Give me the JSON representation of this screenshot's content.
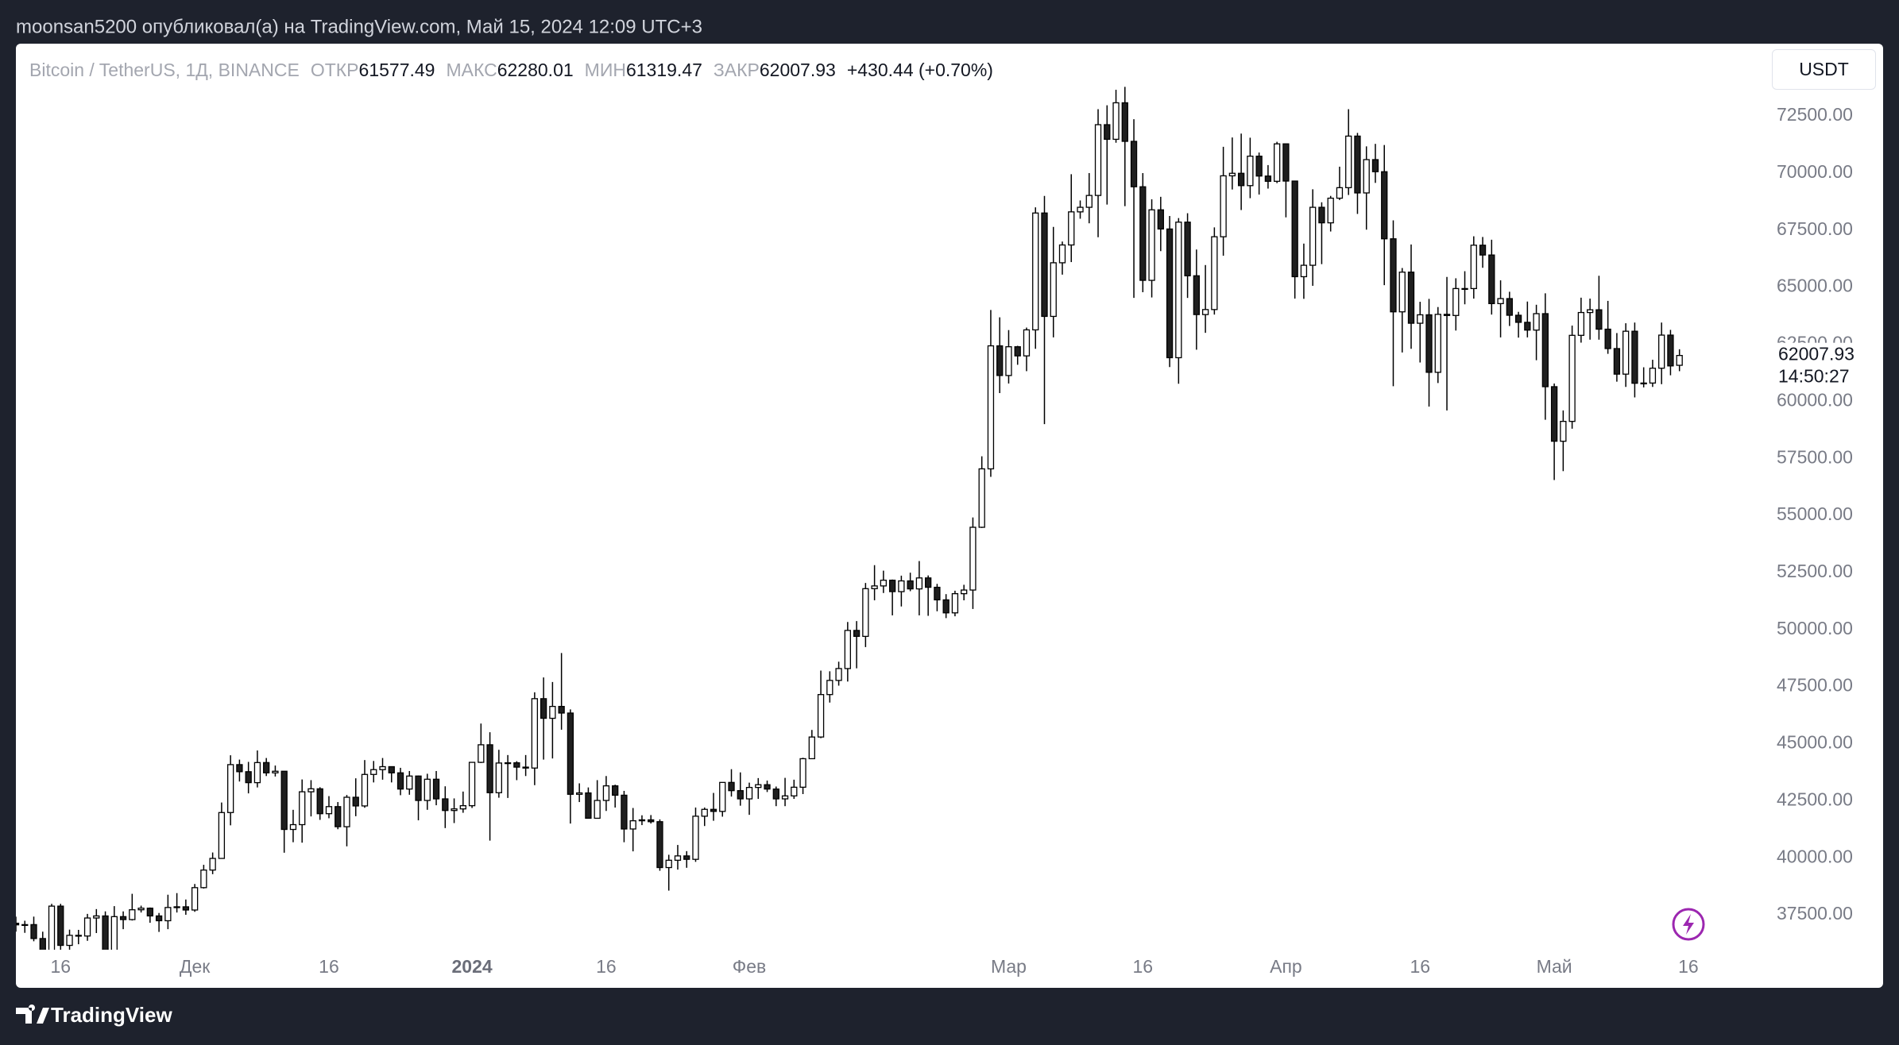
{
  "header": "moonsan5200 опубликовал(а) на TradingView.com, Май 15, 2024 12:09 UTC+3",
  "footer": {
    "brand": "TradingView"
  },
  "currency_button": "USDT",
  "chart_data": {
    "type": "candlestick",
    "symbol": "Bitcoin / TetherUS, 1Д, BINANCE",
    "legend_labels": {
      "open": "ОТКР",
      "high": "МАКС",
      "low": "МИН",
      "close": "ЗАКР"
    },
    "change": "+430.44 (+0.70%)",
    "countdown": "14:50:27",
    "up_color": "#ffffff",
    "down_color": "#1f1f1f",
    "wick_color": "#000000",
    "grid": false,
    "xlim": [
      "2023-11-11",
      "2024-05-24"
    ],
    "ylim": [
      35970,
      75670
    ],
    "yticks": [
      {
        "value": 37500,
        "label": "37500.00"
      },
      {
        "value": 40000,
        "label": "40000.00"
      },
      {
        "value": 42500,
        "label": "42500.00"
      },
      {
        "value": 45000,
        "label": "45000.00"
      },
      {
        "value": 47500,
        "label": "47500.00"
      },
      {
        "value": 50000,
        "label": "50000.00"
      },
      {
        "value": 52500,
        "label": "52500.00"
      },
      {
        "value": 55000,
        "label": "55000.00"
      },
      {
        "value": 57500,
        "label": "57500.00"
      },
      {
        "value": 60000,
        "label": "60000.00"
      },
      {
        "value": 62500,
        "label": "62500.00"
      },
      {
        "value": 65000,
        "label": "65000.00"
      },
      {
        "value": 67500,
        "label": "67500.00"
      },
      {
        "value": 70000,
        "label": "70000.00"
      },
      {
        "value": 72500,
        "label": "72500.00"
      }
    ],
    "xticks": [
      {
        "value": "2023-11-16",
        "label": "16"
      },
      {
        "value": "2023-12-01",
        "label": "Дек"
      },
      {
        "value": "2023-12-16",
        "label": "16"
      },
      {
        "value": "2024-01-01",
        "label": "2024"
      },
      {
        "value": "2024-01-16",
        "label": "16"
      },
      {
        "value": "2024-02-01",
        "label": "Фев"
      },
      {
        "value": "2024-03-01",
        "label": "Мар"
      },
      {
        "value": "2024-03-16",
        "label": "16"
      },
      {
        "value": "2024-04-01",
        "label": "Апр"
      },
      {
        "value": "2024-04-16",
        "label": "16"
      },
      {
        "value": "2024-05-01",
        "label": "Май"
      },
      {
        "value": "2024-05-16",
        "label": "16"
      }
    ],
    "x": [
      "2023-11-11",
      "2023-11-12",
      "2023-11-13",
      "2023-11-14",
      "2023-11-15",
      "2023-11-16",
      "2023-11-17",
      "2023-11-18",
      "2023-11-19",
      "2023-11-20",
      "2023-11-21",
      "2023-11-22",
      "2023-11-23",
      "2023-11-24",
      "2023-11-25",
      "2023-11-26",
      "2023-11-27",
      "2023-11-28",
      "2023-11-29",
      "2023-11-30",
      "2023-12-01",
      "2023-12-02",
      "2023-12-03",
      "2023-12-04",
      "2023-12-05",
      "2023-12-06",
      "2023-12-07",
      "2023-12-08",
      "2023-12-09",
      "2023-12-10",
      "2023-12-11",
      "2023-12-12",
      "2023-12-13",
      "2023-12-14",
      "2023-12-15",
      "2023-12-16",
      "2023-12-17",
      "2023-12-18",
      "2023-12-19",
      "2023-12-20",
      "2023-12-21",
      "2023-12-22",
      "2023-12-23",
      "2023-12-24",
      "2023-12-25",
      "2023-12-26",
      "2023-12-27",
      "2023-12-28",
      "2023-12-29",
      "2023-12-30",
      "2023-12-31",
      "2024-01-01",
      "2024-01-02",
      "2024-01-03",
      "2024-01-04",
      "2024-01-05",
      "2024-01-06",
      "2024-01-07",
      "2024-01-08",
      "2024-01-09",
      "2024-01-10",
      "2024-01-11",
      "2024-01-12",
      "2024-01-13",
      "2024-01-14",
      "2024-01-15",
      "2024-01-16",
      "2024-01-17",
      "2024-01-18",
      "2024-01-19",
      "2024-01-20",
      "2024-01-21",
      "2024-01-22",
      "2024-01-23",
      "2024-01-24",
      "2024-01-25",
      "2024-01-26",
      "2024-01-27",
      "2024-01-28",
      "2024-01-29",
      "2024-01-30",
      "2024-01-31",
      "2024-02-01",
      "2024-02-02",
      "2024-02-03",
      "2024-02-04",
      "2024-02-05",
      "2024-02-06",
      "2024-02-07",
      "2024-02-08",
      "2024-02-09",
      "2024-02-10",
      "2024-02-11",
      "2024-02-12",
      "2024-02-13",
      "2024-02-14",
      "2024-02-15",
      "2024-02-16",
      "2024-02-17",
      "2024-02-18",
      "2024-02-19",
      "2024-02-20",
      "2024-02-21",
      "2024-02-22",
      "2024-02-23",
      "2024-02-24",
      "2024-02-25",
      "2024-02-26",
      "2024-02-27",
      "2024-02-28",
      "2024-02-29",
      "2024-03-01",
      "2024-03-02",
      "2024-03-03",
      "2024-03-04",
      "2024-03-05",
      "2024-03-06",
      "2024-03-07",
      "2024-03-08",
      "2024-03-09",
      "2024-03-10",
      "2024-03-11",
      "2024-03-12",
      "2024-03-13",
      "2024-03-14",
      "2024-03-15",
      "2024-03-16",
      "2024-03-17",
      "2024-03-18",
      "2024-03-19",
      "2024-03-20",
      "2024-03-21",
      "2024-03-22",
      "2024-03-23",
      "2024-03-24",
      "2024-03-25",
      "2024-03-26",
      "2024-03-27",
      "2024-03-28",
      "2024-03-29",
      "2024-03-30",
      "2024-03-31",
      "2024-04-01",
      "2024-04-02",
      "2024-04-03",
      "2024-04-04",
      "2024-04-05",
      "2024-04-06",
      "2024-04-07",
      "2024-04-08",
      "2024-04-09",
      "2024-04-10",
      "2024-04-11",
      "2024-04-12",
      "2024-04-13",
      "2024-04-14",
      "2024-04-15",
      "2024-04-16",
      "2024-04-17",
      "2024-04-18",
      "2024-04-19",
      "2024-04-20",
      "2024-04-21",
      "2024-04-22",
      "2024-04-23",
      "2024-04-24",
      "2024-04-25",
      "2024-04-26",
      "2024-04-27",
      "2024-04-28",
      "2024-04-29",
      "2024-04-30",
      "2024-05-01",
      "2024-05-02",
      "2024-05-03",
      "2024-05-04",
      "2024-05-05",
      "2024-05-06",
      "2024-05-07",
      "2024-05-08",
      "2024-05-09",
      "2024-05-10",
      "2024-05-11",
      "2024-05-12",
      "2024-05-13",
      "2024-05-14",
      "2024-05-15"
    ],
    "open": [
      37130,
      37060,
      37070,
      36460,
      35550,
      37880,
      36160,
      36600,
      36570,
      37360,
      37450,
      35750,
      37420,
      37290,
      37720,
      37790,
      37450,
      37240,
      37820,
      37850,
      37710,
      38690,
      39460,
      39970,
      41980,
      44080,
      43770,
      43290,
      44170,
      43720,
      43790,
      41240,
      41450,
      42890,
      43020,
      41930,
      42240,
      41360,
      42650,
      42270,
      43650,
      43860,
      43990,
      43720,
      43010,
      43580,
      42510,
      43440,
      42580,
      42070,
      42140,
      42280,
      44180,
      44950,
      42850,
      44150,
      44160,
      43970,
      43930,
      46970,
      46110,
      46630,
      46340,
      42780,
      42840,
      41730,
      42510,
      43150,
      42740,
      41260,
      41620,
      41660,
      41580,
      39570,
      39890,
      40080,
      39930,
      41820,
      42120,
      42030,
      43300,
      42940,
      42580,
      43080,
      43200,
      43010,
      42580,
      42710,
      43090,
      44340,
      45290,
      47150,
      47770,
      48290,
      49960,
      49700,
      51790,
      51910,
      52160,
      51660,
      52130,
      51780,
      52260,
      51850,
      51300,
      50730,
      51570,
      51730,
      54480,
      57040,
      62430,
      61130,
      62390,
      61990,
      63130,
      68250,
      63720,
      66070,
      66850,
      68300,
      68500,
      69020,
      72120,
      71480,
      73080,
      71390,
      69400,
      65300,
      68390,
      67550,
      61910,
      67850,
      65500,
      63800,
      64020,
      67210,
      69880,
      69990,
      69450,
      70740,
      69870,
      69640,
      71280,
      69650,
      65460,
      65960,
      68500,
      67820,
      68900,
      69360,
      71620,
      69130,
      70590,
      70060,
      67120,
      63920,
      65660,
      63420,
      63790,
      61270,
      63810,
      63760,
      64940,
      64940,
      66840,
      66410,
      64280,
      64500,
      63770,
      63460,
      63120,
      63840,
      60640,
      58250,
      59120,
      62890,
      63890,
      64010,
      63160,
      62310,
      61190,
      63070,
      60790,
      60800,
      61450,
      62900,
      61577.49
    ],
    "high": [
      37420,
      37240,
      37420,
      36760,
      37980,
      37980,
      36850,
      36840,
      37540,
      37750,
      37650,
      37880,
      37650,
      38420,
      37900,
      37820,
      37580,
      38380,
      38450,
      38170,
      38850,
      39690,
      40230,
      42420,
      44490,
      44300,
      44200,
      44700,
      44370,
      44040,
      43790,
      42100,
      43430,
      43400,
      43090,
      42700,
      42440,
      42750,
      43480,
      44280,
      44240,
      44370,
      43990,
      43940,
      43800,
      43600,
      43680,
      43800,
      43130,
      42600,
      42900,
      44190,
      45880,
      45500,
      44730,
      44500,
      44230,
      44500,
      47250,
      47900,
      47700,
      48970,
      46500,
      43260,
      43080,
      43400,
      43580,
      43200,
      42930,
      42180,
      41860,
      41870,
      41680,
      40130,
      40560,
      40290,
      42200,
      42200,
      42840,
      43300,
      43880,
      43740,
      43290,
      43490,
      43380,
      43120,
      43500,
      43420,
      44380,
      45600,
      48200,
      48170,
      48590,
      50330,
      50370,
      52040,
      52820,
      52580,
      52190,
      52360,
      52490,
      53000,
      52370,
      52000,
      51550,
      51700,
      51960,
      54910,
      57590,
      64000,
      63680,
      63120,
      62430,
      63230,
      68500,
      69000,
      67640,
      67000,
      69950,
      68800,
      70000,
      72800,
      72970,
      73650,
      73780,
      72360,
      70000,
      68850,
      68960,
      68120,
      68030,
      68240,
      66650,
      65970,
      67620,
      71150,
      71560,
      71730,
      71550,
      70900,
      70350,
      71370,
      71280,
      69670,
      66910,
      69290,
      68720,
      69000,
      70280,
      72800,
      71760,
      71170,
      71280,
      71230,
      67930,
      65840,
      66870,
      64360,
      64490,
      64130,
      65450,
      65390,
      65700,
      67230,
      67200,
      67080,
      65300,
      64800,
      63920,
      64370,
      64230,
      64730,
      60780,
      59600,
      63320,
      64540,
      64500,
      65500,
      64400,
      62990,
      63420,
      63450,
      61490,
      61820,
      63450,
      63130,
      62280.01
    ],
    "low": [
      36760,
      36710,
      36340,
      35360,
      35360,
      35900,
      35510,
      36210,
      36360,
      36700,
      35630,
      35600,
      36870,
      37250,
      37600,
      37150,
      36750,
      36870,
      37600,
      37500,
      37630,
      38650,
      39280,
      39960,
      41420,
      43340,
      42820,
      43080,
      43580,
      43560,
      40220,
      40680,
      40660,
      41810,
      41660,
      41730,
      41250,
      40500,
      41820,
      42190,
      43300,
      43420,
      43300,
      42740,
      42760,
      41640,
      42100,
      42300,
      41300,
      41520,
      41970,
      42180,
      44150,
      40750,
      42630,
      42620,
      43400,
      43580,
      43180,
      44300,
      44350,
      45610,
      41500,
      42440,
      41720,
      41720,
      42050,
      42200,
      40680,
      40280,
      41430,
      41500,
      39430,
      38560,
      39480,
      39560,
      39820,
      41390,
      41620,
      41800,
      42680,
      42280,
      41880,
      42580,
      42880,
      42260,
      42260,
      42580,
      42790,
      44330,
      45240,
      46800,
      47540,
      47720,
      48300,
      49230,
      51280,
      51600,
      50620,
      51010,
      51680,
      50620,
      50600,
      50800,
      50500,
      50580,
      51280,
      50900,
      54450,
      56690,
      60360,
      60780,
      61600,
      61320,
      62300,
      59000,
      62800,
      65550,
      66100,
      68000,
      67800,
      67190,
      68620,
      71330,
      68550,
      64530,
      64780,
      64550,
      66580,
      61500,
      60770,
      64530,
      62260,
      63000,
      63800,
      66380,
      69280,
      68380,
      68900,
      69060,
      69320,
      69560,
      68060,
      64500,
      64490,
      65060,
      66010,
      67440,
      68820,
      69040,
      68210,
      67520,
      69570,
      65090,
      60660,
      62140,
      62300,
      61700,
      59770,
      60800,
      59600,
      63100,
      64250,
      64500,
      65850,
      63800,
      62800,
      63300,
      62790,
      62800,
      61800,
      59190,
      56550,
      56940,
      58800,
      62570,
      62700,
      62700,
      62080,
      60860,
      60630,
      60170,
      60610,
      60630,
      60750,
      61140,
      61319.47
    ],
    "close": [
      37060,
      37070,
      36460,
      35550,
      37880,
      36160,
      36600,
      36570,
      37360,
      37450,
      35750,
      37420,
      37290,
      37720,
      37790,
      37450,
      37240,
      37820,
      37850,
      37710,
      38690,
      39460,
      39970,
      41980,
      44080,
      43770,
      43290,
      44170,
      43720,
      43790,
      41240,
      41450,
      42890,
      43020,
      41930,
      42240,
      41360,
      42650,
      42270,
      43650,
      43860,
      43990,
      43720,
      43010,
      43580,
      42510,
      43440,
      42580,
      42070,
      42140,
      42280,
      44180,
      44950,
      42850,
      44150,
      44160,
      43970,
      43930,
      46970,
      46110,
      46630,
      46340,
      42780,
      42840,
      41730,
      42510,
      43150,
      42740,
      41260,
      41620,
      41660,
      41580,
      39570,
      39890,
      40080,
      39930,
      41820,
      42120,
      42030,
      43300,
      42940,
      42580,
      43080,
      43200,
      43010,
      42580,
      42710,
      43090,
      44340,
      45290,
      47150,
      47770,
      48290,
      49960,
      49700,
      51790,
      51910,
      52160,
      51660,
      52130,
      51780,
      52260,
      51850,
      51300,
      50730,
      51570,
      51730,
      54480,
      57040,
      62430,
      61130,
      62390,
      61990,
      63130,
      68250,
      63720,
      66070,
      66850,
      68300,
      68500,
      69020,
      72120,
      71480,
      73080,
      71390,
      69400,
      65300,
      68390,
      67550,
      61910,
      67850,
      65500,
      63800,
      64020,
      67210,
      69880,
      69990,
      69450,
      70740,
      69870,
      69640,
      71280,
      69650,
      65460,
      65960,
      68500,
      67820,
      68900,
      69360,
      71620,
      69130,
      70590,
      70060,
      67120,
      63920,
      65660,
      63420,
      63790,
      61270,
      63810,
      63760,
      64940,
      64940,
      66840,
      66410,
      64280,
      64500,
      63770,
      63460,
      63120,
      63840,
      60640,
      58250,
      59120,
      62890,
      63890,
      64010,
      63160,
      62310,
      61190,
      63070,
      60790,
      60800,
      61450,
      62900,
      61550,
      62007.93
    ]
  }
}
